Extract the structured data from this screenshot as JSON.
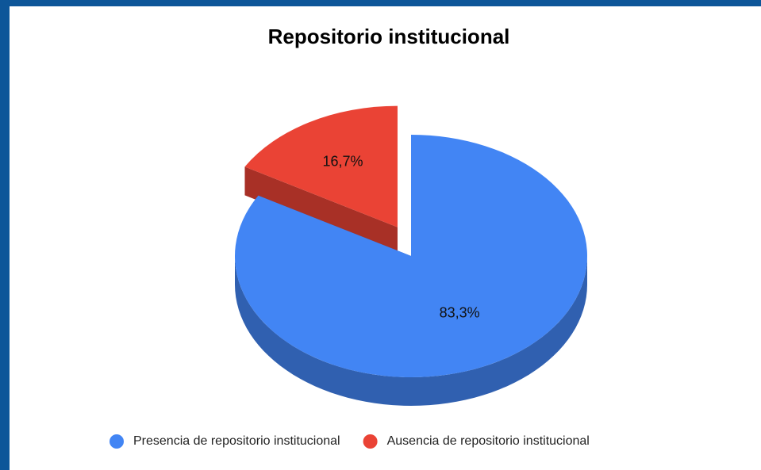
{
  "chart_data": {
    "type": "pie",
    "title": "Repositorio institucional",
    "categories": [
      "Presencia de repositorio institucional",
      "Ausencia de repositorio institucional"
    ],
    "values": [
      83.3,
      16.7
    ],
    "value_labels": [
      "83,3%",
      "16,7%"
    ],
    "colors": [
      "#4285f4",
      "#ea4335"
    ],
    "three_d": true,
    "exploded": [
      false,
      true
    ],
    "legend": "bottom"
  }
}
